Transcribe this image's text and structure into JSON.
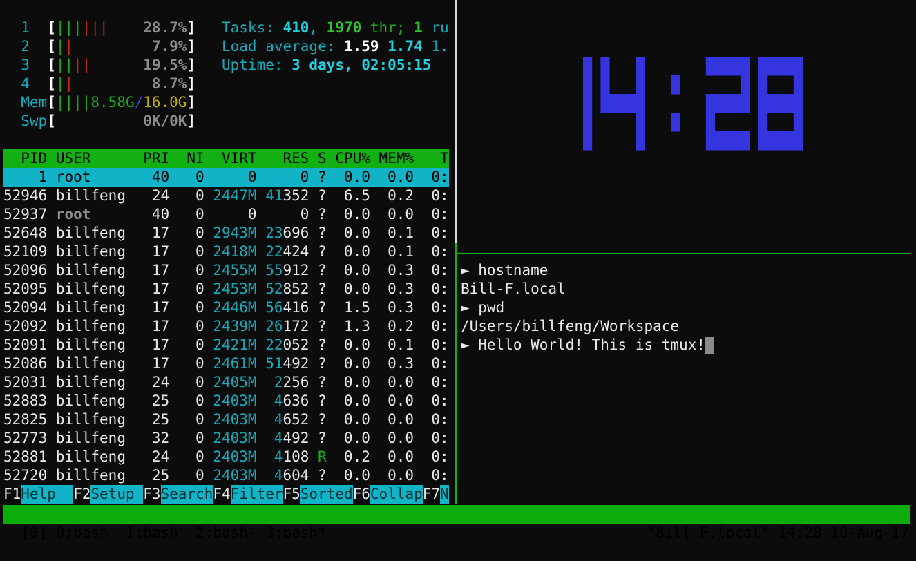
{
  "colors": {
    "clock": "#3535e0",
    "header_bg": "#12b012",
    "selected_bg": "#10b4c6",
    "status_bg": "#0aad0a"
  },
  "htop": {
    "cpus": [
      {
        "id": "1",
        "green_bars": 3,
        "red_bars": 3,
        "percent": "28.7%"
      },
      {
        "id": "2",
        "green_bars": 1,
        "red_bars": 1,
        "percent": "7.9%"
      },
      {
        "id": "3",
        "green_bars": 2,
        "red_bars": 2,
        "percent": "19.5%"
      },
      {
        "id": "4",
        "green_bars": 1,
        "red_bars": 1,
        "percent": "8.7%"
      }
    ],
    "mem": {
      "label": "Mem",
      "green_bars": 4,
      "used": "8.58G",
      "sep": "/",
      "total": "16.0G"
    },
    "swp": {
      "label": "Swp",
      "value": "0K/0K"
    },
    "tasks": {
      "label": "Tasks: ",
      "count": "410",
      "sep1": ", ",
      "threads": "1970",
      "thr": " thr; ",
      "running": "1",
      "ru": " ru"
    },
    "load": {
      "label": "Load average: ",
      "l1": "1.59",
      "l5": "1.74",
      "l15": "1."
    },
    "uptime": {
      "label": "Uptime: ",
      "value": "3 days, 02:05:15"
    },
    "columns": {
      "pid": "PID",
      "user": "USER",
      "pri": "PRI",
      "ni": "NI",
      "virt": "VIRT",
      "res": "RES",
      "s": "S",
      "cpu": "CPU%",
      "mem": "MEM%",
      "time": "T"
    },
    "processes": [
      {
        "pid": "1",
        "user": "root",
        "pri": "40",
        "ni": "0",
        "virt": "0",
        "res": "0",
        "s": "?",
        "cpu": "0.0",
        "mem": "0.0",
        "time": "0:",
        "selected": true
      },
      {
        "pid": "52946",
        "user": "billfeng",
        "pri": "24",
        "ni": "0",
        "virt": "2447M",
        "res": "41352",
        "s": "?",
        "cpu": "6.5",
        "mem": "0.2",
        "time": "0:"
      },
      {
        "pid": "52937",
        "user": "root",
        "pri": "40",
        "ni": "0",
        "virt": "0",
        "res": "0",
        "s": "?",
        "cpu": "0.0",
        "mem": "0.0",
        "time": "0:"
      },
      {
        "pid": "52648",
        "user": "billfeng",
        "pri": "17",
        "ni": "0",
        "virt": "2943M",
        "res": "23696",
        "s": "?",
        "cpu": "0.0",
        "mem": "0.1",
        "time": "0:"
      },
      {
        "pid": "52109",
        "user": "billfeng",
        "pri": "17",
        "ni": "0",
        "virt": "2418M",
        "res": "22424",
        "s": "?",
        "cpu": "0.0",
        "mem": "0.1",
        "time": "0:"
      },
      {
        "pid": "52096",
        "user": "billfeng",
        "pri": "17",
        "ni": "0",
        "virt": "2455M",
        "res": "55912",
        "s": "?",
        "cpu": "0.0",
        "mem": "0.3",
        "time": "0:"
      },
      {
        "pid": "52095",
        "user": "billfeng",
        "pri": "17",
        "ni": "0",
        "virt": "2453M",
        "res": "52852",
        "s": "?",
        "cpu": "0.0",
        "mem": "0.3",
        "time": "0:"
      },
      {
        "pid": "52094",
        "user": "billfeng",
        "pri": "17",
        "ni": "0",
        "virt": "2446M",
        "res": "56416",
        "s": "?",
        "cpu": "1.5",
        "mem": "0.3",
        "time": "0:"
      },
      {
        "pid": "52092",
        "user": "billfeng",
        "pri": "17",
        "ni": "0",
        "virt": "2439M",
        "res": "26172",
        "s": "?",
        "cpu": "1.3",
        "mem": "0.2",
        "time": "0:"
      },
      {
        "pid": "52091",
        "user": "billfeng",
        "pri": "17",
        "ni": "0",
        "virt": "2421M",
        "res": "22052",
        "s": "?",
        "cpu": "0.0",
        "mem": "0.1",
        "time": "0:"
      },
      {
        "pid": "52086",
        "user": "billfeng",
        "pri": "17",
        "ni": "0",
        "virt": "2461M",
        "res": "51492",
        "s": "?",
        "cpu": "0.0",
        "mem": "0.3",
        "time": "0:"
      },
      {
        "pid": "52031",
        "user": "billfeng",
        "pri": "24",
        "ni": "0",
        "virt": "2405M",
        "res": "2256",
        "s": "?",
        "cpu": "0.0",
        "mem": "0.0",
        "time": "0:"
      },
      {
        "pid": "52883",
        "user": "billfeng",
        "pri": "25",
        "ni": "0",
        "virt": "2403M",
        "res": "4636",
        "s": "?",
        "cpu": "0.0",
        "mem": "0.0",
        "time": "0:"
      },
      {
        "pid": "52825",
        "user": "billfeng",
        "pri": "25",
        "ni": "0",
        "virt": "2403M",
        "res": "4652",
        "s": "?",
        "cpu": "0.0",
        "mem": "0.0",
        "time": "0:"
      },
      {
        "pid": "52773",
        "user": "billfeng",
        "pri": "32",
        "ni": "0",
        "virt": "2403M",
        "res": "4492",
        "s": "?",
        "cpu": "0.0",
        "mem": "0.0",
        "time": "0:"
      },
      {
        "pid": "52881",
        "user": "billfeng",
        "pri": "24",
        "ni": "0",
        "virt": "2403M",
        "res": "4108",
        "s": "R",
        "cpu": "0.2",
        "mem": "0.0",
        "time": "0:"
      },
      {
        "pid": "52720",
        "user": "billfeng",
        "pri": "25",
        "ni": "0",
        "virt": "2403M",
        "res": "4604",
        "s": "?",
        "cpu": "0.0",
        "mem": "0.0",
        "time": "0:"
      }
    ],
    "fkeys": [
      {
        "key": "F1",
        "label": "Help  "
      },
      {
        "key": "F2",
        "label": "Setup "
      },
      {
        "key": "F3",
        "label": "Search"
      },
      {
        "key": "F4",
        "label": "Filter"
      },
      {
        "key": "F5",
        "label": "Sorted"
      },
      {
        "key": "F6",
        "label": "Collap"
      },
      {
        "key": "F7",
        "label": "N"
      }
    ]
  },
  "clock": {
    "time": "14:28"
  },
  "shell": {
    "lines": [
      {
        "prompt": "►",
        "text": "hostname"
      },
      {
        "prompt": "",
        "text": "Bill-F.local"
      },
      {
        "prompt": "►",
        "text": "pwd"
      },
      {
        "prompt": "",
        "text": "/Users/billfeng/Workspace"
      },
      {
        "prompt": "►",
        "text": "Hello World! This is tmux!",
        "cursor": true
      }
    ]
  },
  "statusbar": {
    "session": "[0]",
    "windows": [
      {
        "label": "0:bash"
      },
      {
        "label": "1:bash"
      },
      {
        "label": "2:bash-"
      },
      {
        "label": "3:bash*"
      }
    ],
    "host": "\"Bill-F.local\"",
    "time": "14:28",
    "date": "10-Aug-17"
  }
}
